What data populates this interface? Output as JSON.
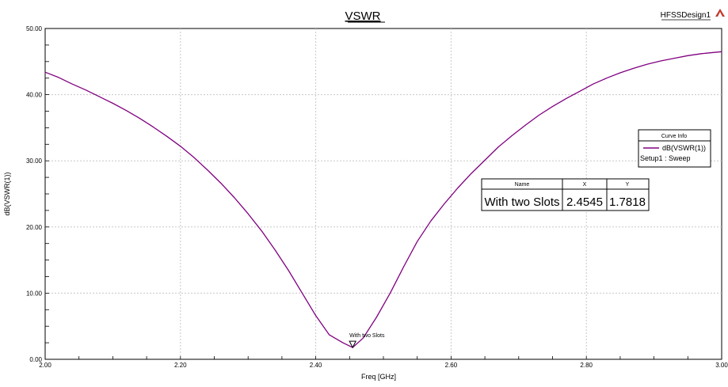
{
  "design_name": "HFSSDesign1",
  "logo_icon": "ansoft-logo-icon",
  "chart_data": {
    "type": "line",
    "title": "VSWR",
    "xlabel": "Freq [GHz]",
    "ylabel": "dB(VSWR(1))",
    "xlim": [
      2.0,
      3.0
    ],
    "ylim": [
      0.0,
      50.0
    ],
    "x_ticks": [
      "2.00",
      "2.20",
      "2.40",
      "2.60",
      "2.80",
      "3.00"
    ],
    "y_ticks": [
      "0.00",
      "10.00",
      "20.00",
      "30.00",
      "40.00",
      "50.00"
    ],
    "grid": true,
    "series": [
      {
        "name": "dB(VSWR(1))",
        "color": "#800080",
        "x": [
          2.0,
          2.02,
          2.04,
          2.06,
          2.08,
          2.1,
          2.12,
          2.14,
          2.16,
          2.18,
          2.2,
          2.22,
          2.24,
          2.26,
          2.28,
          2.3,
          2.32,
          2.34,
          2.36,
          2.38,
          2.4,
          2.42,
          2.44,
          2.4545,
          2.47,
          2.49,
          2.51,
          2.53,
          2.55,
          2.57,
          2.59,
          2.61,
          2.63,
          2.65,
          2.67,
          2.69,
          2.71,
          2.73,
          2.75,
          2.77,
          2.79,
          2.81,
          2.83,
          2.85,
          2.87,
          2.89,
          2.91,
          2.93,
          2.95,
          2.97,
          3.0
        ],
        "y": [
          43.4,
          42.6,
          41.6,
          40.7,
          39.7,
          38.7,
          37.6,
          36.4,
          35.1,
          33.7,
          32.2,
          30.5,
          28.6,
          26.6,
          24.4,
          22.0,
          19.4,
          16.5,
          13.4,
          10.0,
          6.6,
          3.7,
          2.5,
          1.7818,
          3.2,
          6.4,
          10.0,
          14.0,
          17.8,
          20.9,
          23.5,
          25.9,
          28.1,
          30.1,
          32.1,
          33.8,
          35.4,
          36.9,
          38.2,
          39.4,
          40.5,
          41.6,
          42.5,
          43.3,
          44.0,
          44.6,
          45.1,
          45.5,
          45.9,
          46.2,
          46.5
        ]
      }
    ],
    "marker": {
      "label": "With two Slots",
      "x": 2.4545,
      "y": 1.7818
    },
    "marker_table": {
      "headers": [
        "Name",
        "X",
        "Y"
      ],
      "rows": [
        [
          "With two Slots",
          "2.4545",
          "1.7818"
        ]
      ]
    },
    "legend": {
      "title": "Curve Info",
      "entries": [
        {
          "label": "dB(VSWR(1))",
          "sublabel": "Setup1 : Sweep",
          "color": "#800080"
        }
      ],
      "placement": "right"
    }
  }
}
